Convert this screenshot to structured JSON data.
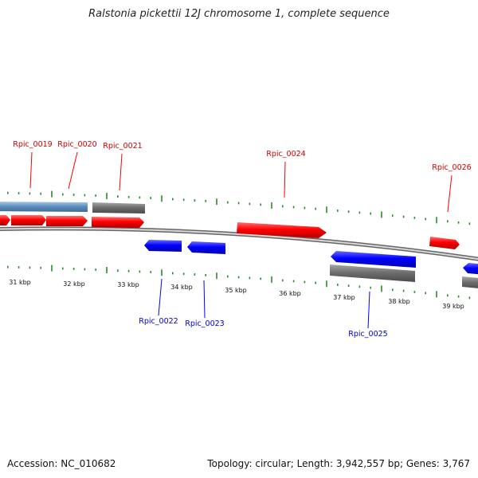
{
  "title": "Ralstonia pickettii 12J chromosome 1, complete sequence",
  "footer": {
    "accession": "Accession: NC_010682",
    "summary": "Topology: circular; Length: 3,942,557 bp; Genes: 3,767"
  },
  "colors": {
    "forward_gene": "#ff0000",
    "reverse_gene": "#0000ff",
    "forward_label": "#cc0000",
    "reverse_label": "#0000cc",
    "gray_feature": "#6f6f6f",
    "steelblue_feature": "#5f8fc0",
    "tick": "#2a8a2a",
    "backbone": "#888888"
  },
  "ticks": [
    {
      "kbp": 31,
      "label": "31 kbp"
    },
    {
      "kbp": 32,
      "label": "32 kbp"
    },
    {
      "kbp": 33,
      "label": "33 kbp"
    },
    {
      "kbp": 34,
      "label": "34 kbp"
    },
    {
      "kbp": 35,
      "label": "35 kbp"
    },
    {
      "kbp": 36,
      "label": "36 kbp"
    },
    {
      "kbp": 37,
      "label": "37 kbp"
    },
    {
      "kbp": 38,
      "label": "38 kbp"
    },
    {
      "kbp": 39,
      "label": "39 kbp"
    }
  ],
  "genes": [
    {
      "id": "Rpic_0019",
      "label": "Rpic_0019",
      "strand": "+",
      "labeled": true
    },
    {
      "id": "Rpic_0020",
      "label": "Rpic_0020",
      "strand": "+",
      "labeled": true
    },
    {
      "id": "Rpic_0021",
      "label": "Rpic_0021",
      "strand": "+",
      "labeled": true
    },
    {
      "id": "Rpic_0022",
      "label": "Rpic_0022",
      "strand": "-",
      "labeled": true
    },
    {
      "id": "Rpic_0023",
      "label": "Rpic_0023",
      "strand": "-",
      "labeled": true
    },
    {
      "id": "Rpic_0024",
      "label": "Rpic_0024",
      "strand": "+",
      "labeled": true
    },
    {
      "id": "Rpic_0025",
      "label": "Rpic_0025",
      "strand": "-",
      "labeled": true
    },
    {
      "id": "Rpic_0026",
      "label": "Rpic_0026",
      "strand": "+",
      "labeled": true
    }
  ]
}
